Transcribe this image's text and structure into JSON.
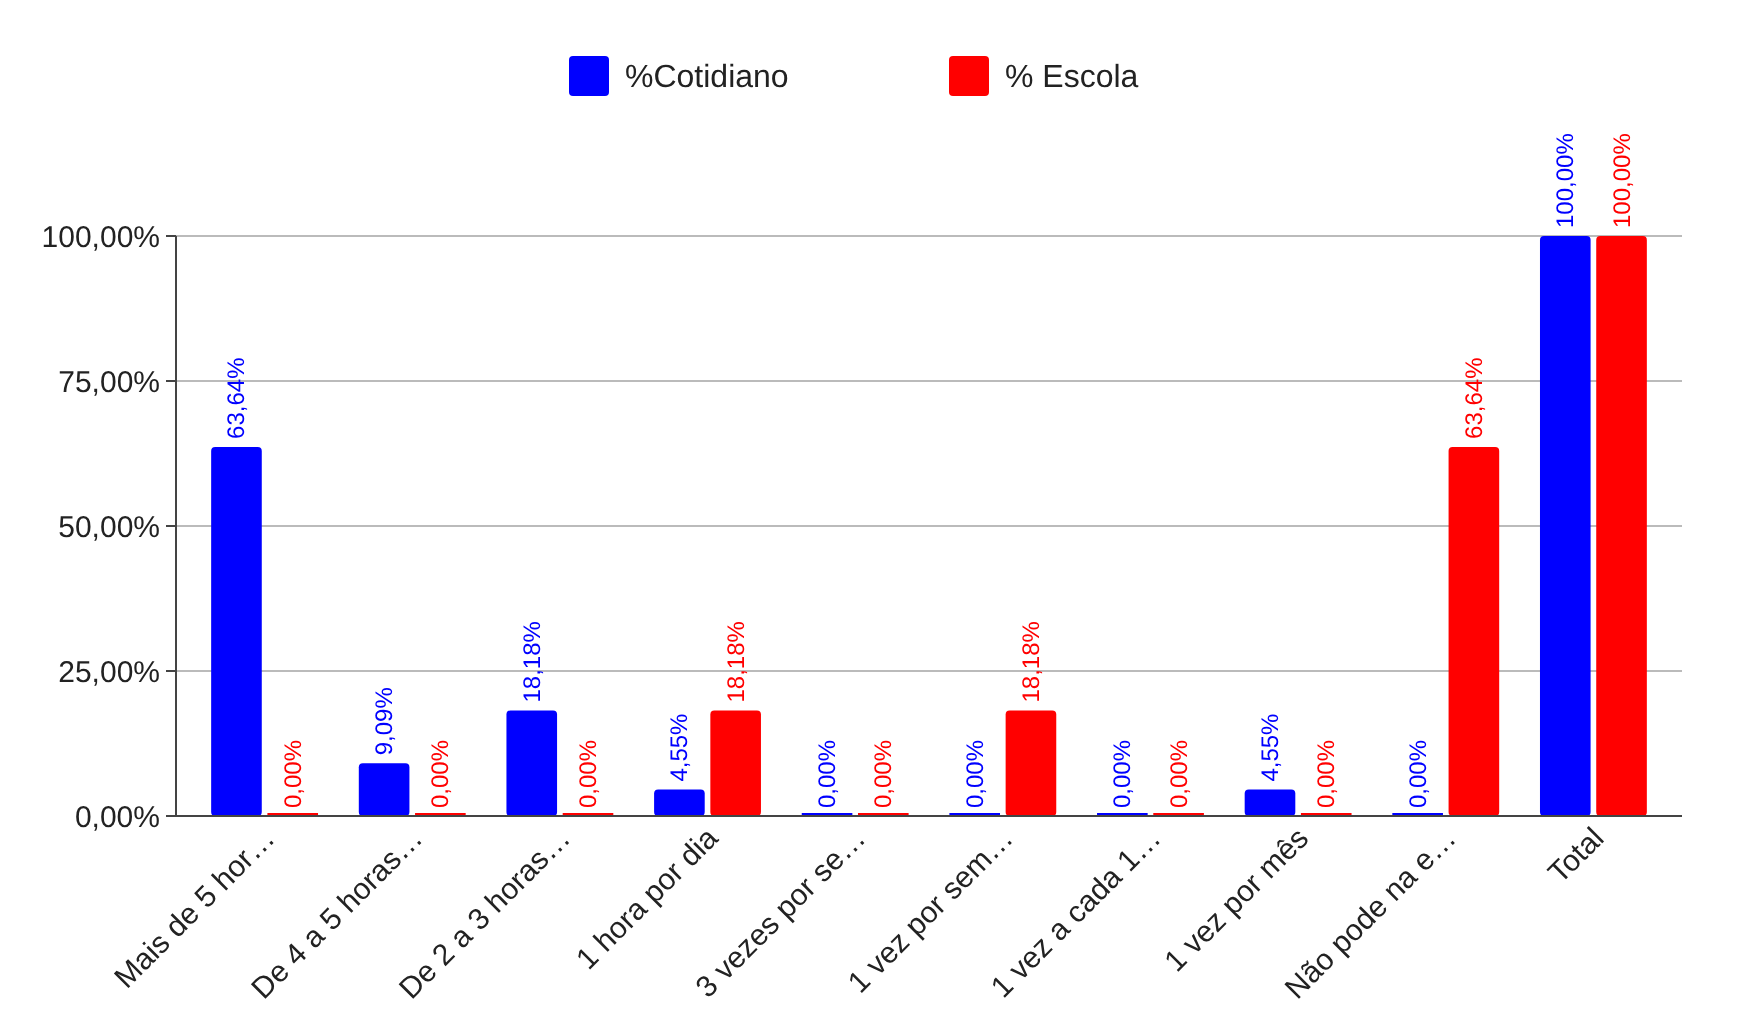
{
  "chart_data": {
    "type": "bar",
    "categories": [
      "Mais de 5 hor…",
      "De 4 a 5 horas…",
      "De 2 a 3 horas…",
      "1 hora por dia",
      "3 vezes por se…",
      "1 vez por sem…",
      "1 vez a cada 1…",
      "1 vez por mês",
      "Não pode na e…",
      "Total"
    ],
    "series": [
      {
        "name": "%Cotidiano",
        "color": "#0000ff",
        "values": [
          63.64,
          9.09,
          18.18,
          4.55,
          0,
          0,
          0,
          4.55,
          0,
          100
        ],
        "value_labels": [
          "63,64%",
          "9,09%",
          "18,18%",
          "4,55%",
          "0,00%",
          "0,00%",
          "0,00%",
          "4,55%",
          "0,00%",
          "100,00%"
        ]
      },
      {
        "name": "% Escola",
        "color": "#ff0000",
        "values": [
          0,
          0,
          0,
          18.18,
          0,
          18.18,
          0,
          0,
          63.64,
          100
        ],
        "value_labels": [
          "0,00%",
          "0,00%",
          "0,00%",
          "18,18%",
          "0,00%",
          "18,18%",
          "0,00%",
          "0,00%",
          "63,64%",
          "100,00%"
        ]
      }
    ],
    "ylim": [
      0,
      100
    ],
    "yticks": [
      {
        "value": 0,
        "label": "0,00%"
      },
      {
        "value": 25,
        "label": "25,00%"
      },
      {
        "value": 50,
        "label": "50,00%"
      },
      {
        "value": 75,
        "label": "75,00%"
      },
      {
        "value": 100,
        "label": "100,00%"
      }
    ],
    "grid": "y",
    "legend": "top"
  }
}
